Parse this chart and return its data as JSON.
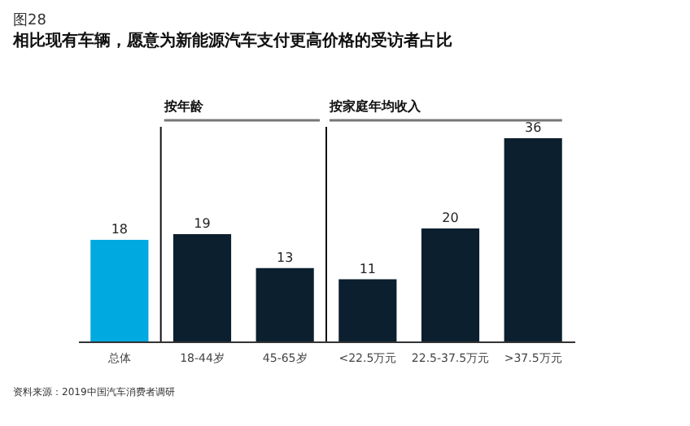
{
  "chart_data": {
    "type": "bar",
    "title": "图28",
    "subtitle": "相比现有车辆，愿意为新能源汽车支付更高价格的受访者占比",
    "categories": [
      "总体",
      "18-44岁",
      "45-65岁",
      "<22.5万元",
      "22.5-37.5万元",
      ">37.5万元"
    ],
    "values": [
      18,
      19,
      13,
      11,
      20,
      36
    ],
    "colors": [
      "#00a9e0",
      "#0b1f2e",
      "#0b1f2e",
      "#0b1f2e",
      "#0b1f2e",
      "#0b1f2e"
    ],
    "data_labels": true,
    "annotations": [
      "按年龄",
      "按家庭年均收入",
      "资料来源：2019中国汽车消费者调研"
    ]
  }
}
